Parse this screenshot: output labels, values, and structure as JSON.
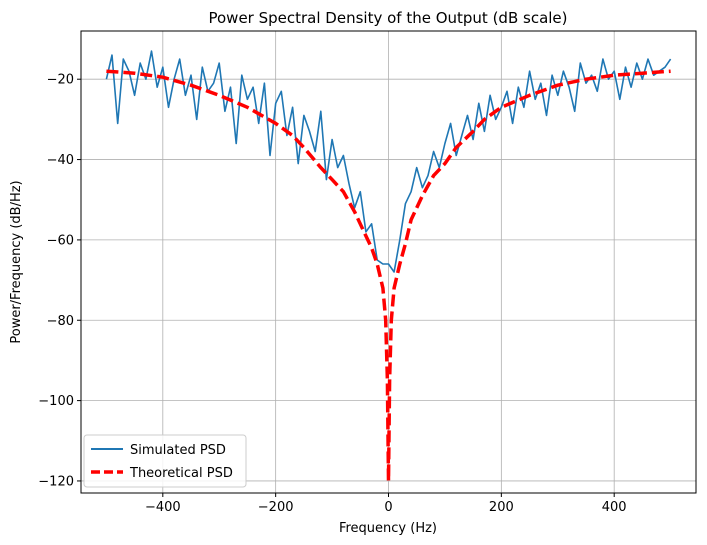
{
  "chart_data": {
    "type": "line",
    "title": "Power Spectral Density of the Output (dB scale)",
    "xlabel": "Frequency (Hz)",
    "ylabel": "Power/Frequency (dB/Hz)",
    "xlim": [
      -545,
      545
    ],
    "ylim": [
      -123,
      -8
    ],
    "xticks": [
      -400,
      -200,
      0,
      200,
      400
    ],
    "xtick_labels": [
      "−400",
      "−200",
      "0",
      "200",
      "400"
    ],
    "yticks": [
      -20,
      -40,
      -60,
      -80,
      -100,
      -120
    ],
    "ytick_labels": [
      "−20",
      "−40",
      "−60",
      "−80",
      "−100",
      "−120"
    ],
    "grid": true,
    "legend_position": "lower-left",
    "series": [
      {
        "name": "Simulated PSD",
        "color": "#1f77b4",
        "style": "solid",
        "x": [
          -500,
          -490,
          -480,
          -470,
          -460,
          -450,
          -440,
          -430,
          -420,
          -410,
          -400,
          -390,
          -380,
          -370,
          -360,
          -350,
          -340,
          -330,
          -320,
          -310,
          -300,
          -290,
          -280,
          -270,
          -260,
          -250,
          -240,
          -230,
          -220,
          -210,
          -200,
          -190,
          -180,
          -170,
          -160,
          -150,
          -140,
          -130,
          -120,
          -110,
          -100,
          -90,
          -80,
          -70,
          -60,
          -50,
          -40,
          -30,
          -20,
          -10,
          0,
          10,
          20,
          30,
          40,
          50,
          60,
          70,
          80,
          90,
          100,
          110,
          120,
          130,
          140,
          150,
          160,
          170,
          180,
          190,
          200,
          210,
          220,
          230,
          240,
          250,
          260,
          270,
          280,
          290,
          300,
          310,
          320,
          330,
          340,
          350,
          360,
          370,
          380,
          390,
          400,
          410,
          420,
          430,
          440,
          450,
          460,
          470,
          480,
          490,
          500
        ],
        "y": [
          -20,
          -14,
          -31,
          -15,
          -18,
          -24,
          -16,
          -20,
          -13,
          -22,
          -17,
          -27,
          -20,
          -15,
          -24,
          -19,
          -30,
          -17,
          -23,
          -21,
          -16,
          -28,
          -22,
          -36,
          -19,
          -25,
          -22,
          -31,
          -21,
          -39,
          -26,
          -23,
          -34,
          -27,
          -41,
          -29,
          -33,
          -38,
          -28,
          -45,
          -35,
          -42,
          -39,
          -46,
          -52,
          -48,
          -58,
          -56,
          -65,
          -66,
          -66,
          -68,
          -60,
          -51,
          -48,
          -42,
          -47,
          -44,
          -38,
          -42,
          -36,
          -31,
          -39,
          -34,
          -29,
          -35,
          -26,
          -33,
          -24,
          -30,
          -27,
          -23,
          -31,
          -22,
          -27,
          -18,
          -25,
          -21,
          -29,
          -19,
          -24,
          -18,
          -22,
          -28,
          -16,
          -21,
          -19,
          -23,
          -15,
          -20,
          -18,
          -25,
          -17,
          -22,
          -16,
          -20,
          -15,
          -19,
          -18,
          -17,
          -15
        ]
      },
      {
        "name": "Theoretical PSD",
        "color": "#ff0000",
        "style": "dashed",
        "x": [
          -500,
          -450,
          -400,
          -350,
          -300,
          -250,
          -200,
          -170,
          -150,
          -120,
          -100,
          -80,
          -60,
          -40,
          -30,
          -20,
          -10,
          -5,
          -2,
          0,
          2,
          5,
          10,
          20,
          30,
          40,
          60,
          80,
          100,
          120,
          150,
          170,
          200,
          250,
          300,
          350,
          400,
          450,
          500
        ],
        "y": [
          -18,
          -18.5,
          -19.5,
          -21.5,
          -24,
          -27,
          -31,
          -34,
          -37,
          -42,
          -45,
          -48,
          -53,
          -59,
          -62,
          -66,
          -72,
          -80,
          -95,
          -120,
          -95,
          -80,
          -72,
          -66,
          -61,
          -55,
          -49,
          -44,
          -41,
          -37,
          -33,
          -30,
          -27,
          -24,
          -21.5,
          -20,
          -19,
          -18.5,
          -18
        ]
      }
    ]
  }
}
